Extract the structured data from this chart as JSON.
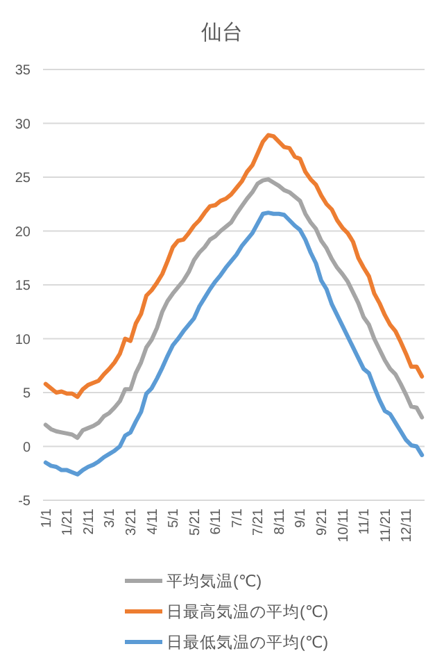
{
  "chart_data": {
    "type": "line",
    "title": "仙台",
    "categories": [
      "1/1",
      null,
      null,
      null,
      "1/21",
      null,
      null,
      null,
      "2/11",
      null,
      null,
      null,
      "3/1",
      null,
      null,
      null,
      "3/21",
      null,
      null,
      null,
      "4/11",
      null,
      null,
      null,
      "5/1",
      null,
      null,
      null,
      "5/21",
      null,
      null,
      null,
      "6/11",
      null,
      null,
      null,
      "7/1",
      null,
      null,
      null,
      "7/21",
      null,
      null,
      null,
      "8/11",
      null,
      null,
      null,
      "9/1",
      null,
      null,
      null,
      "9/21",
      null,
      null,
      null,
      "10/11",
      null,
      null,
      null,
      "11/1",
      null,
      null,
      null,
      "11/21",
      null,
      null,
      null,
      "12/11",
      null,
      null,
      null
    ],
    "series": [
      {
        "name": "平均気温(℃)",
        "color": "#a5a5a5",
        "values": [
          2.0,
          1.6,
          1.4,
          1.3,
          1.2,
          1.1,
          0.8,
          1.5,
          1.7,
          1.9,
          2.2,
          2.8,
          3.1,
          3.6,
          4.2,
          5.3,
          5.3,
          6.8,
          7.8,
          9.2,
          9.9,
          11.0,
          12.5,
          13.5,
          14.2,
          14.8,
          15.4,
          16.2,
          17.3,
          18.0,
          18.5,
          19.2,
          19.5,
          20.0,
          20.4,
          20.8,
          21.6,
          22.3,
          23.0,
          23.6,
          24.4,
          24.7,
          24.8,
          24.5,
          24.2,
          23.8,
          23.6,
          23.2,
          22.8,
          21.6,
          20.8,
          20.2,
          19.1,
          18.4,
          17.4,
          16.6,
          16.0,
          15.3,
          14.3,
          13.3,
          12.0,
          11.3,
          10.0,
          9.0,
          8.0,
          7.2,
          6.7,
          5.8,
          4.8,
          3.7,
          3.6,
          2.7
        ]
      },
      {
        "name": "日最高気温の平均(℃)",
        "color": "#ed7d31",
        "values": [
          5.8,
          5.4,
          5.0,
          5.1,
          4.9,
          4.9,
          4.6,
          5.3,
          5.7,
          5.9,
          6.1,
          6.7,
          7.2,
          7.8,
          8.6,
          10.0,
          9.8,
          11.4,
          12.3,
          14.0,
          14.5,
          15.2,
          16.0,
          17.2,
          18.5,
          19.1,
          19.2,
          19.8,
          20.5,
          21.0,
          21.7,
          22.3,
          22.4,
          22.8,
          23.0,
          23.4,
          24.0,
          24.6,
          25.5,
          26.1,
          27.2,
          28.3,
          28.9,
          28.8,
          28.3,
          27.8,
          27.7,
          26.9,
          26.7,
          25.5,
          24.8,
          24.3,
          23.3,
          22.5,
          22.0,
          21.0,
          20.3,
          19.8,
          19.0,
          17.5,
          16.6,
          15.8,
          14.2,
          13.3,
          12.2,
          11.3,
          10.7,
          9.7,
          8.6,
          7.4,
          7.4,
          6.5
        ]
      },
      {
        "name": "日最低気温の平均(℃)",
        "color": "#5b9bd5",
        "values": [
          -1.5,
          -1.8,
          -1.9,
          -2.2,
          -2.2,
          -2.4,
          -2.6,
          -2.2,
          -1.9,
          -1.7,
          -1.4,
          -1.0,
          -0.7,
          -0.4,
          0.0,
          1.0,
          1.3,
          2.3,
          3.2,
          4.9,
          5.4,
          6.3,
          7.3,
          8.4,
          9.4,
          10.0,
          10.7,
          11.3,
          11.9,
          13.0,
          13.8,
          14.6,
          15.3,
          15.9,
          16.6,
          17.2,
          17.8,
          18.6,
          19.2,
          19.8,
          20.7,
          21.6,
          21.7,
          21.6,
          21.6,
          21.5,
          21.0,
          20.5,
          20.1,
          19.2,
          18.0,
          17.0,
          15.4,
          14.6,
          13.2,
          12.2,
          11.2,
          10.2,
          9.2,
          8.2,
          7.2,
          6.8,
          5.5,
          4.3,
          3.3,
          3.0,
          2.2,
          1.4,
          0.6,
          0.1,
          0.0,
          -0.8
        ]
      }
    ],
    "ylim": [
      -5,
      35
    ],
    "yticks": [
      -5,
      0,
      5,
      10,
      15,
      20,
      25,
      30,
      35
    ],
    "grid": "y",
    "legend": "bottom"
  }
}
